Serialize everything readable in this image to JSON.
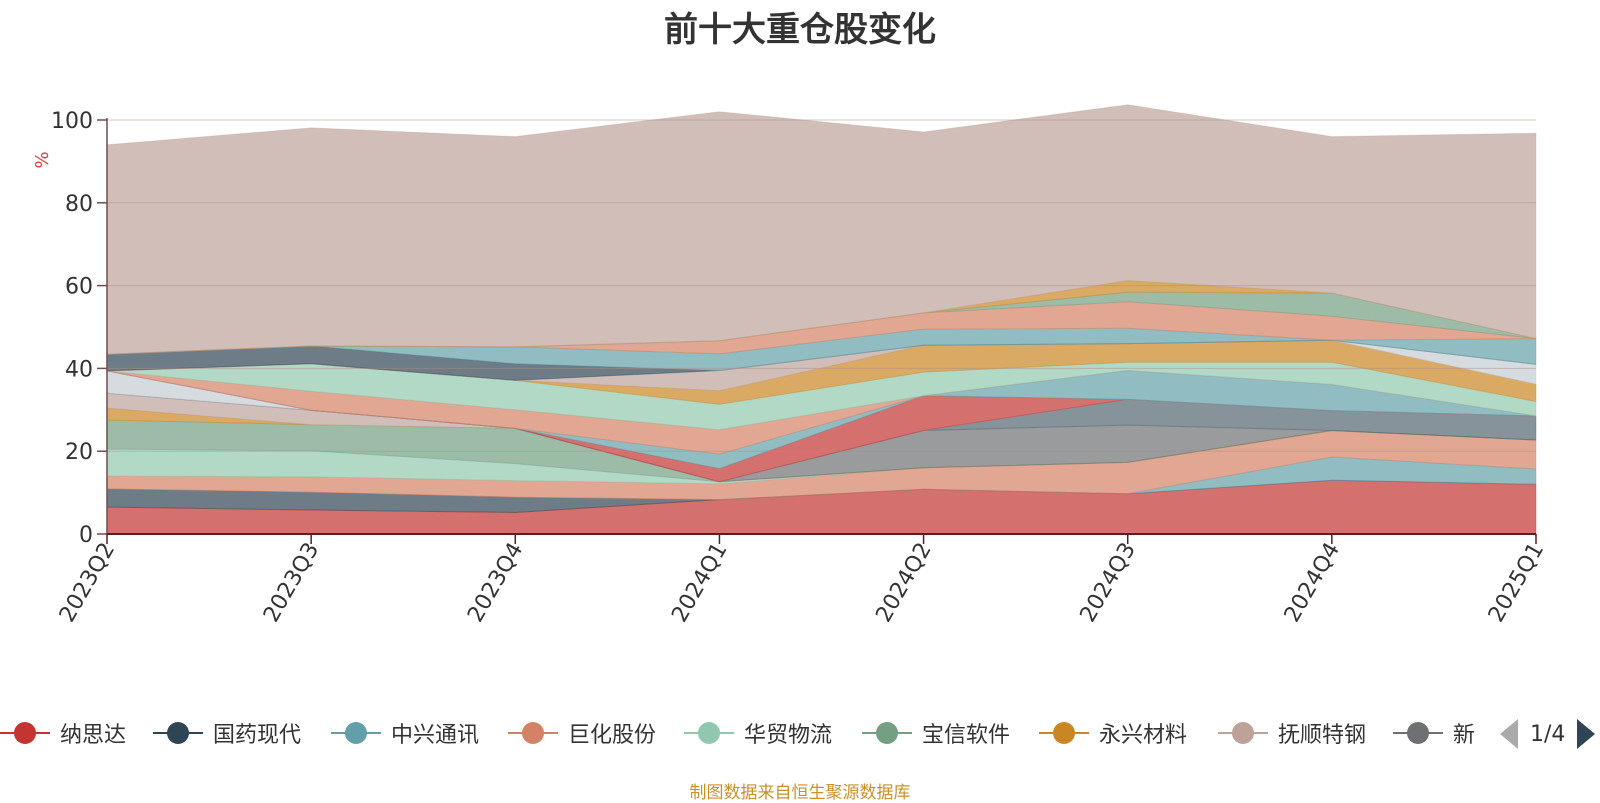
{
  "title": "前十大重仓股变化",
  "source_note": "制图数据来自恒生聚源数据库",
  "legend_pager": "1/4",
  "legend": [
    {
      "name": "纳思达",
      "color": "#c23531"
    },
    {
      "name": "国药现代",
      "color": "#2f4554"
    },
    {
      "name": "中兴通讯",
      "color": "#61a0a8"
    },
    {
      "name": "巨化股份",
      "color": "#d48265"
    },
    {
      "name": "华贸物流",
      "color": "#91c7ae"
    },
    {
      "name": "宝信软件",
      "color": "#749f83"
    },
    {
      "name": "永兴材料",
      "color": "#ca8622"
    },
    {
      "name": "抚顺特钢",
      "color": "#bda29a"
    },
    {
      "name": "新",
      "color": "#6e7074"
    }
  ],
  "chart_data": {
    "type": "area",
    "stacked": true,
    "ylabel": "%",
    "ylim": [
      0,
      100
    ],
    "yticks": [
      0,
      20,
      40,
      60,
      80,
      100
    ],
    "categories": [
      "2023Q2",
      "2023Q3",
      "2023Q4",
      "2024Q1",
      "2024Q2",
      "2024Q3",
      "2024Q4",
      "2025Q1"
    ],
    "series": [
      {
        "name": "纳思达",
        "color": "#c23531",
        "values": [
          6.5,
          5.8,
          5.2,
          8.3,
          10.8,
          9.7,
          13.0,
          12.0
        ]
      },
      {
        "name": "国药现代",
        "color": "#2f4554",
        "values": [
          4.4,
          4.3,
          3.7,
          0,
          0,
          0,
          0,
          0
        ]
      },
      {
        "name": "中兴通讯",
        "color": "#61a0a8",
        "values": [
          0,
          0,
          0,
          0,
          0,
          0,
          5.6,
          3.7
        ]
      },
      {
        "name": "巨化股份",
        "color": "#d48265",
        "values": [
          3.1,
          3.7,
          4.0,
          3.8,
          5.2,
          7.6,
          6.4,
          7.0
        ]
      },
      {
        "name": "华贸物流",
        "color": "#91c7ae",
        "values": [
          6.5,
          6.3,
          4.1,
          0.5,
          0,
          0,
          0,
          0
        ]
      },
      {
        "name": "宝信软件",
        "color": "#749f83",
        "values": [
          7.0,
          6.3,
          8.5,
          0,
          0,
          0,
          0,
          0
        ]
      },
      {
        "name": "永兴材料",
        "color": "#ca8622",
        "values": [
          2.9,
          0,
          0,
          0,
          0,
          0,
          0,
          0
        ]
      },
      {
        "name": "抚顺特钢",
        "color": "#bda29a",
        "values": [
          3.6,
          3.5,
          0,
          0,
          0,
          0,
          0,
          0
        ]
      },
      {
        "name": "新",
        "color": "#6e7074",
        "values": [
          0,
          0,
          0,
          0,
          9.0,
          9.0,
          0,
          0
        ]
      },
      {
        "name": "",
        "color": "#546570",
        "values": [
          0,
          0,
          0,
          0,
          0,
          6.2,
          4.8,
          5.8
        ]
      },
      {
        "name": "",
        "color": "#c4ccd3",
        "values": [
          5.4,
          0,
          0,
          0,
          0,
          0,
          0,
          0
        ]
      },
      {
        "name": "",
        "color": "#c23531",
        "values": [
          0,
          0,
          0,
          3.2,
          8.4,
          0,
          0,
          0
        ]
      },
      {
        "name": "",
        "color": "#61a0a8",
        "values": [
          0,
          0,
          0,
          3.5,
          0,
          7.0,
          6.3,
          0
        ]
      },
      {
        "name": "",
        "color": "#d48265",
        "values": [
          0,
          4.6,
          4.5,
          5.9,
          0,
          0,
          0,
          0
        ]
      },
      {
        "name": "",
        "color": "#91c7ae",
        "values": [
          0,
          6.6,
          7.1,
          6.1,
          5.7,
          2.0,
          5.4,
          3.5
        ]
      },
      {
        "name": "",
        "color": "#ca8622",
        "values": [
          0,
          0,
          0,
          3.3,
          6.5,
          4.5,
          5.3,
          4.2
        ]
      },
      {
        "name": "",
        "color": "#bda29a",
        "values": [
          0,
          0,
          0,
          4.9,
          0,
          0,
          0,
          0
        ]
      },
      {
        "name": "",
        "color": "#c4ccd3",
        "values": [
          0,
          0,
          0,
          0,
          0,
          0,
          0,
          4.8
        ]
      },
      {
        "name": "",
        "color": "#2f4554",
        "values": [
          4.0,
          4.3,
          4.0,
          0,
          0,
          0,
          0,
          0
        ]
      },
      {
        "name": "",
        "color": "#61a0a8",
        "values": [
          0,
          0,
          4.1,
          4.0,
          3.9,
          3.7,
          0,
          6.2
        ]
      },
      {
        "name": "",
        "color": "#d48265",
        "values": [
          0,
          0,
          0,
          3.2,
          3.9,
          6.4,
          5.8,
          0
        ]
      },
      {
        "name": "",
        "color": "#749f83",
        "values": [
          0,
          0,
          0,
          0,
          0,
          2.3,
          5.6,
          0
        ]
      },
      {
        "name": "",
        "color": "#ca8622",
        "values": [
          0,
          0,
          0,
          0,
          0,
          2.8,
          0,
          0
        ]
      },
      {
        "name": "",
        "color": "#bda29a",
        "values": [
          50.6,
          52.7,
          50.8,
          55.3,
          43.7,
          42.5,
          37.8,
          49.6
        ]
      }
    ]
  }
}
